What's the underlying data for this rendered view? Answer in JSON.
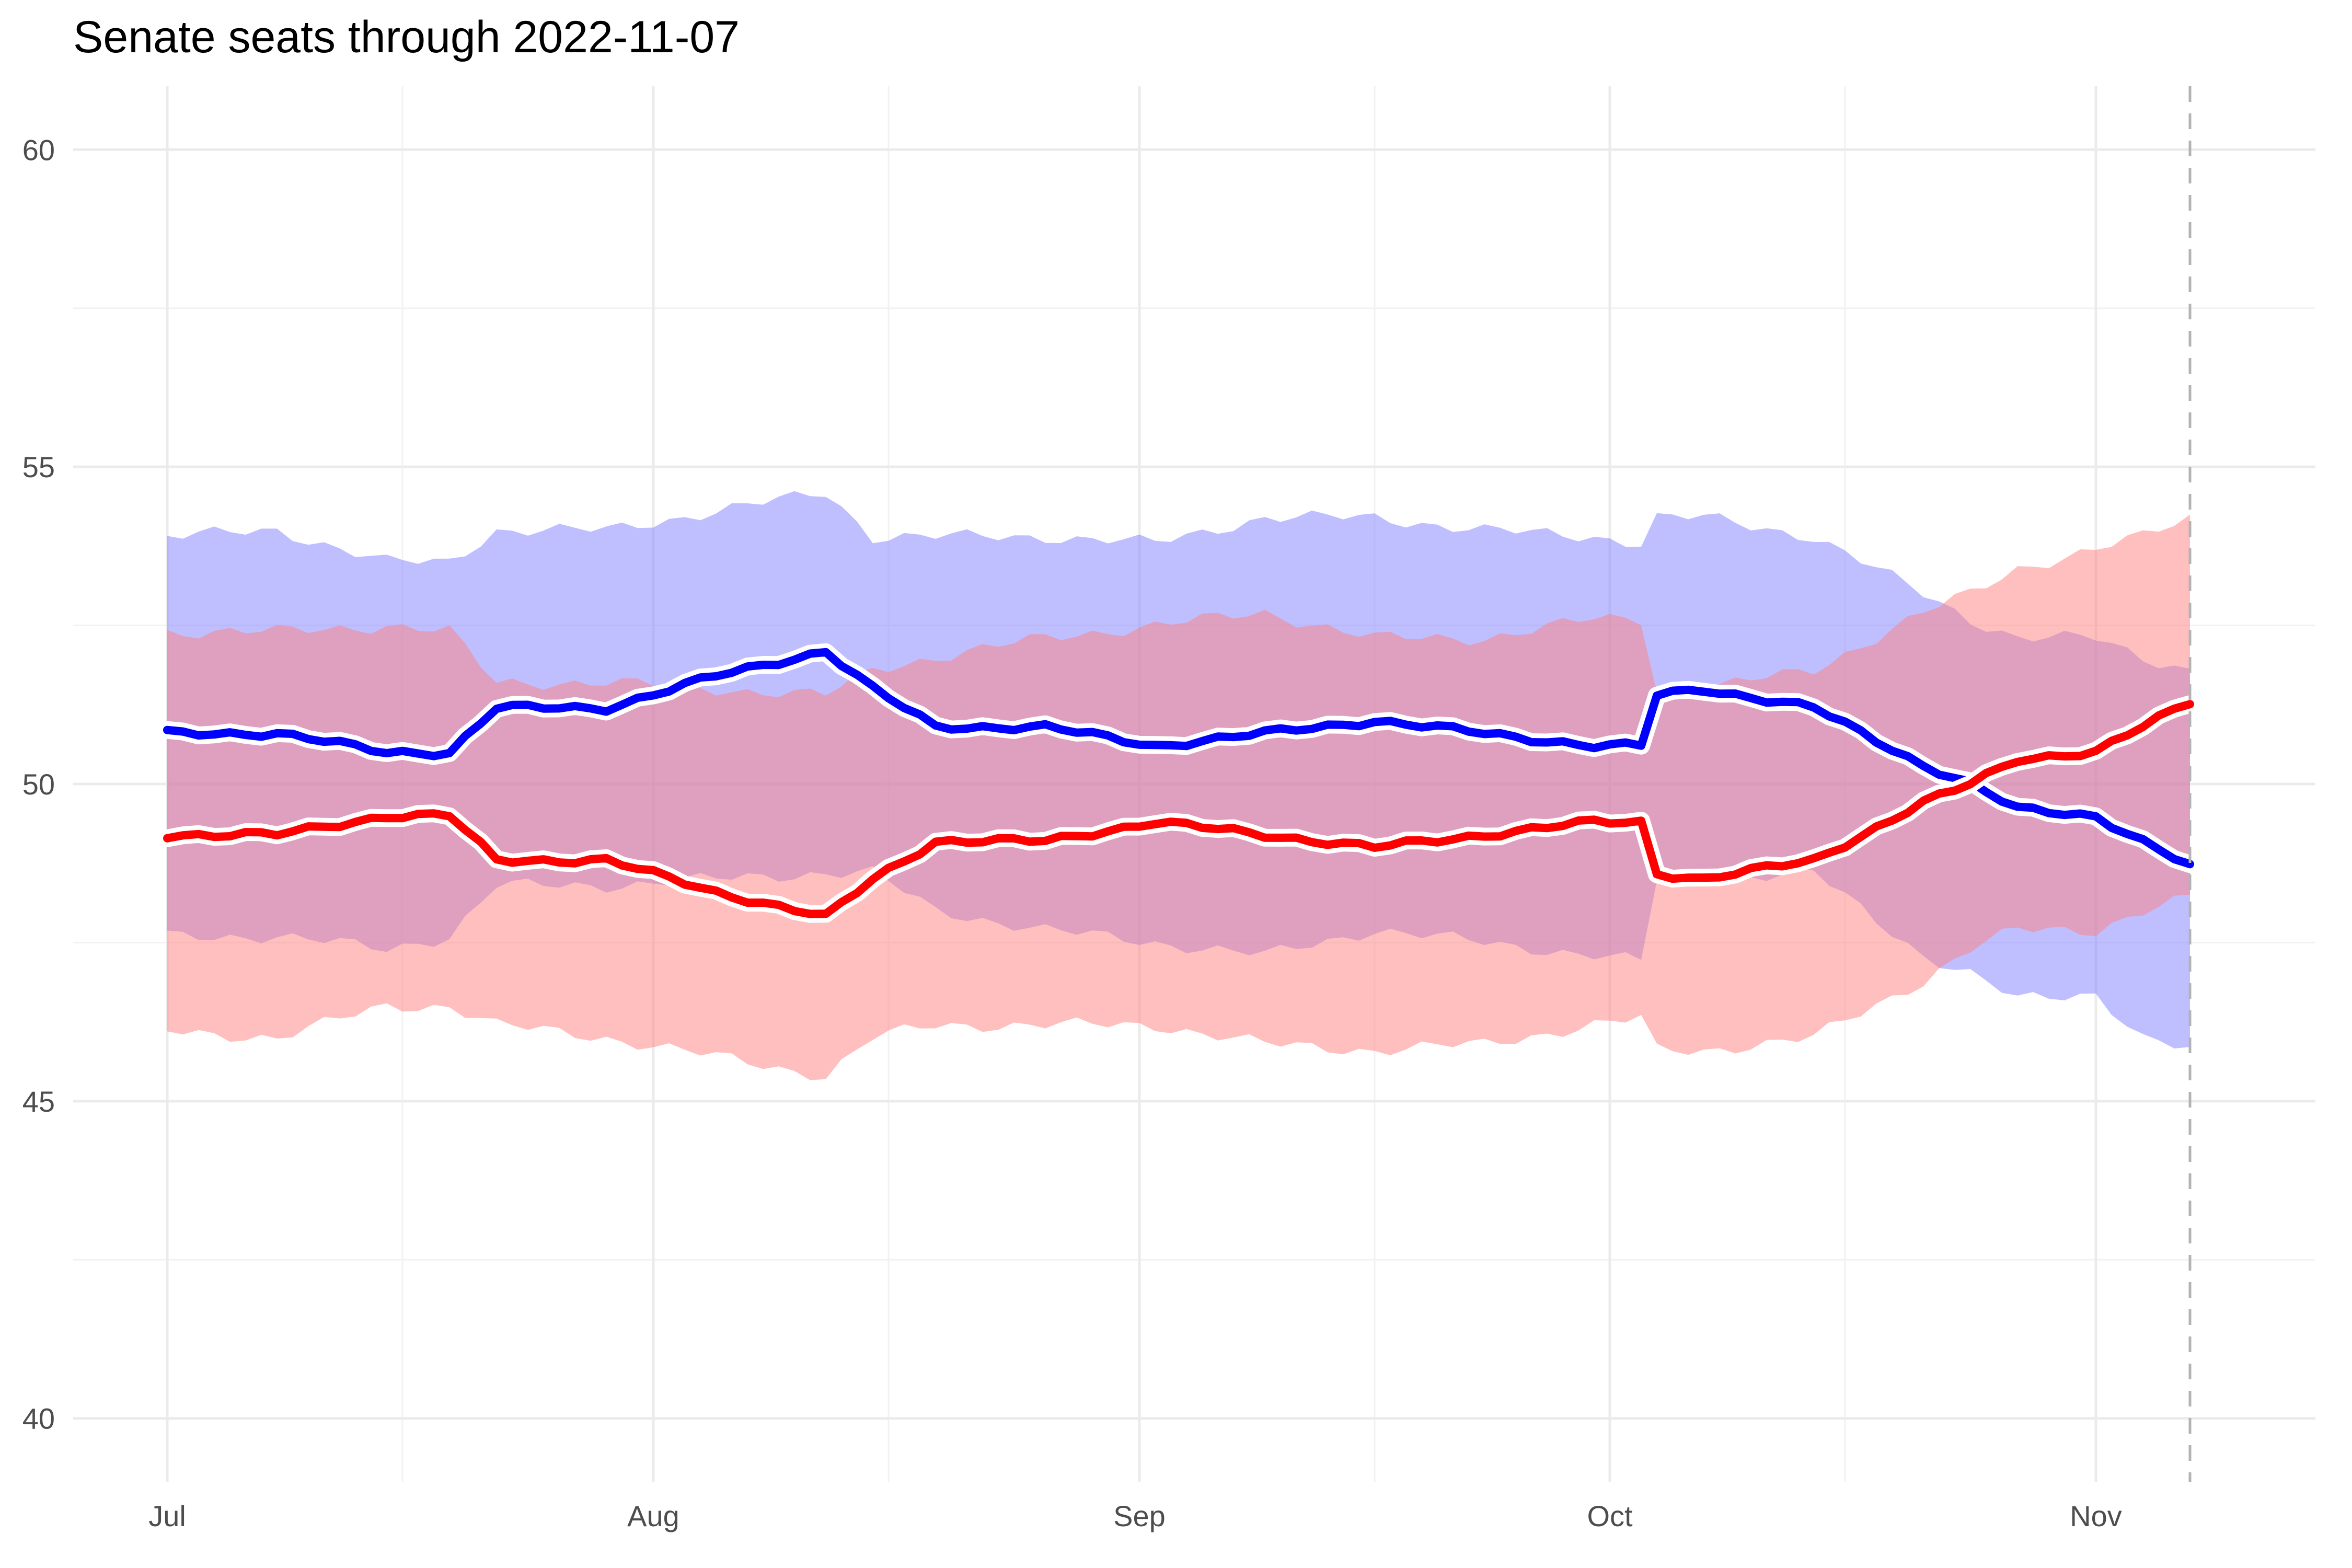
{
  "chart_data": {
    "type": "area",
    "title": "Senate seats through 2022-11-07",
    "xlabel": "",
    "ylabel": "",
    "x_start": "2022-07-01",
    "x_end": "2022-11-07",
    "xlim": [
      "2022-06-25",
      "2022-11-15"
    ],
    "ylim": [
      39,
      61
    ],
    "y_ticks": [
      40,
      45,
      50,
      55,
      60
    ],
    "x_ticks": [
      {
        "date": "2022-07-01",
        "label": "Jul"
      },
      {
        "date": "2022-08-01",
        "label": "Aug"
      },
      {
        "date": "2022-09-01",
        "label": "Sep"
      },
      {
        "date": "2022-10-01",
        "label": "Oct"
      },
      {
        "date": "2022-11-01",
        "label": "Nov"
      }
    ],
    "vline": "2022-11-07",
    "grid": true,
    "legend": "none",
    "series": [
      {
        "color": "#0000ff",
        "band_color": "#8080ff",
        "x": [
          "2022-07-01",
          "2022-07-08",
          "2022-07-15",
          "2022-07-19",
          "2022-07-22",
          "2022-07-29",
          "2022-08-05",
          "2022-08-12",
          "2022-08-15",
          "2022-08-19",
          "2022-08-26",
          "2022-09-02",
          "2022-09-09",
          "2022-09-16",
          "2022-09-23",
          "2022-09-30",
          "2022-10-03",
          "2022-10-04",
          "2022-10-07",
          "2022-10-14",
          "2022-10-21",
          "2022-10-24",
          "2022-10-27",
          "2022-11-01",
          "2022-11-04",
          "2022-11-07"
        ],
        "values": [
          50.8,
          50.8,
          50.5,
          50.5,
          51.2,
          51.2,
          51.7,
          52.1,
          51.5,
          50.9,
          50.9,
          50.6,
          50.8,
          51.0,
          50.8,
          50.6,
          50.6,
          51.4,
          51.5,
          51.2,
          50.3,
          50.0,
          49.6,
          49.5,
          49.1,
          48.7
        ],
        "lower": [
          47.6,
          47.6,
          47.4,
          47.6,
          48.4,
          48.4,
          48.5,
          48.6,
          48.6,
          48.0,
          47.7,
          47.5,
          47.3,
          47.7,
          47.5,
          47.3,
          47.2,
          48.5,
          48.5,
          48.6,
          47.3,
          47.0,
          46.6,
          46.7,
          46.0,
          45.8
        ],
        "upper": [
          53.9,
          54.0,
          53.5,
          53.5,
          54.0,
          54.0,
          54.3,
          54.6,
          53.9,
          53.9,
          53.9,
          53.8,
          54.2,
          54.2,
          54.0,
          53.9,
          53.8,
          54.2,
          54.2,
          53.9,
          53.0,
          52.6,
          52.3,
          52.3,
          52.0,
          51.8
        ]
      },
      {
        "color": "#ff0000",
        "band_color": "#ff8080",
        "x": [
          "2022-07-01",
          "2022-07-08",
          "2022-07-15",
          "2022-07-19",
          "2022-07-22",
          "2022-07-29",
          "2022-08-05",
          "2022-08-12",
          "2022-08-15",
          "2022-08-19",
          "2022-08-26",
          "2022-09-02",
          "2022-09-09",
          "2022-09-16",
          "2022-09-23",
          "2022-09-30",
          "2022-10-03",
          "2022-10-04",
          "2022-10-07",
          "2022-10-14",
          "2022-10-21",
          "2022-10-24",
          "2022-10-27",
          "2022-11-01",
          "2022-11-04",
          "2022-11-07"
        ],
        "values": [
          49.2,
          49.2,
          49.5,
          49.5,
          48.8,
          48.8,
          48.3,
          47.9,
          48.5,
          49.1,
          49.1,
          49.4,
          49.2,
          49.0,
          49.2,
          49.4,
          49.4,
          48.6,
          48.5,
          48.8,
          49.7,
          50.0,
          50.4,
          50.5,
          50.9,
          51.3
        ],
        "lower": [
          46.1,
          46.0,
          46.5,
          46.5,
          46.2,
          46.0,
          45.7,
          45.4,
          46.0,
          46.2,
          46.2,
          46.2,
          45.9,
          45.8,
          45.9,
          46.2,
          46.3,
          45.8,
          45.8,
          46.0,
          46.9,
          47.4,
          47.7,
          47.7,
          48.0,
          48.2
        ],
        "upper": [
          52.4,
          52.4,
          52.5,
          52.4,
          51.6,
          51.6,
          51.5,
          51.4,
          51.8,
          52.0,
          52.3,
          52.5,
          52.7,
          52.3,
          52.3,
          52.6,
          52.6,
          51.5,
          51.5,
          51.8,
          52.7,
          53.0,
          53.4,
          53.7,
          53.9,
          54.2
        ]
      }
    ]
  }
}
